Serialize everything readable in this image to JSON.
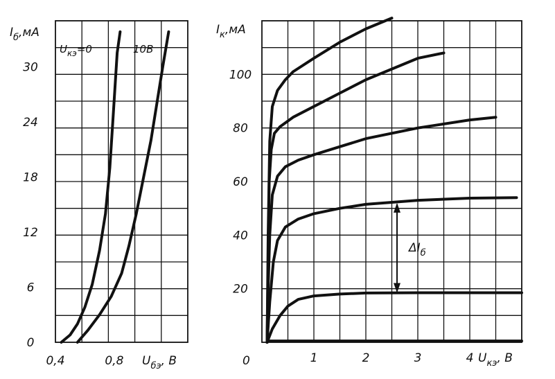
{
  "chart_data": [
    {
      "type": "line",
      "ylabel_main": "I",
      "ylabel_sub": "б",
      "ylabel_unit": ",мА",
      "xlabel_main": "U",
      "xlabel_sub": "бэ",
      "xlabel_unit": ", В",
      "xticks": [
        "0,4",
        "0,8"
      ],
      "xtick_values": [
        0.4,
        0.8
      ],
      "yticks": [
        "0",
        "6",
        "12",
        "18",
        "24",
        "30"
      ],
      "ytick_values": [
        0,
        6,
        12,
        18,
        24,
        30
      ],
      "xlim": [
        0.4,
        1.3
      ],
      "ylim": [
        0,
        35
      ],
      "grid": true,
      "series": [
        {
          "name": "U_кэ=0",
          "name_main": "U",
          "name_sub": "кэ",
          "name_eq": "=0",
          "points": [
            [
              0.44,
              0
            ],
            [
              0.5,
              0.8
            ],
            [
              0.55,
              2
            ],
            [
              0.6,
              3.8
            ],
            [
              0.65,
              6.3
            ],
            [
              0.7,
              10
            ],
            [
              0.74,
              14
            ],
            [
              0.77,
              19
            ],
            [
              0.79,
              24
            ],
            [
              0.81,
              29
            ],
            [
              0.82,
              31.5
            ],
            [
              0.84,
              33.8
            ]
          ]
        },
        {
          "name": "10В",
          "points": [
            [
              0.55,
              0
            ],
            [
              0.62,
              1.3
            ],
            [
              0.7,
              3
            ],
            [
              0.78,
              5
            ],
            [
              0.85,
              7.5
            ],
            [
              0.9,
              10.5
            ],
            [
              0.95,
              14
            ],
            [
              1.0,
              18
            ],
            [
              1.05,
              22
            ],
            [
              1.09,
              26
            ],
            [
              1.13,
              30
            ],
            [
              1.17,
              33.8
            ]
          ]
        }
      ]
    },
    {
      "type": "line",
      "ylabel_main": "I",
      "ylabel_sub": "к",
      "ylabel_unit": ",мА",
      "xlabel_main": "U",
      "xlabel_sub": "кэ",
      "xlabel_unit": ", В",
      "origin_label": "0",
      "xticks": [
        "1",
        "2",
        "3",
        "4"
      ],
      "xtick_values": [
        1,
        2,
        3,
        4
      ],
      "yticks": [
        "20",
        "40",
        "60",
        "80",
        "100"
      ],
      "ytick_values": [
        20,
        40,
        60,
        80,
        100
      ],
      "xlim": [
        0,
        5
      ],
      "ylim": [
        0,
        120
      ],
      "grid": true,
      "annotation_main": "ΔI",
      "annotation_sub": "б",
      "annotation_arrow": {
        "x": 2.6,
        "y_from": 18.5,
        "y_to": 52
      },
      "series": [
        {
          "points": [
            [
              0.1,
              0.5
            ],
            [
              5.0,
              0.5
            ]
          ]
        },
        {
          "points": [
            [
              0.1,
              0
            ],
            [
              0.2,
              5
            ],
            [
              0.35,
              10
            ],
            [
              0.5,
              13.5
            ],
            [
              0.7,
              16
            ],
            [
              1.0,
              17.3
            ],
            [
              1.5,
              18
            ],
            [
              2.0,
              18.4
            ],
            [
              3.0,
              18.5
            ],
            [
              5.0,
              18.5
            ]
          ]
        },
        {
          "points": [
            [
              0.1,
              0
            ],
            [
              0.15,
              15
            ],
            [
              0.22,
              30
            ],
            [
              0.3,
              38
            ],
            [
              0.45,
              43
            ],
            [
              0.7,
              46
            ],
            [
              1.0,
              48
            ],
            [
              1.5,
              50
            ],
            [
              2.0,
              51.5
            ],
            [
              3.0,
              53
            ],
            [
              4.0,
              53.8
            ],
            [
              4.9,
              54
            ]
          ]
        },
        {
          "points": [
            [
              0.1,
              0
            ],
            [
              0.12,
              20
            ],
            [
              0.15,
              40
            ],
            [
              0.2,
              55
            ],
            [
              0.3,
              62
            ],
            [
              0.45,
              65.5
            ],
            [
              0.7,
              68
            ],
            [
              1.0,
              70
            ],
            [
              1.5,
              73
            ],
            [
              2.0,
              76
            ],
            [
              3.0,
              80
            ],
            [
              4.0,
              83
            ],
            [
              4.5,
              84
            ]
          ]
        },
        {
          "points": [
            [
              0.1,
              0
            ],
            [
              0.12,
              30
            ],
            [
              0.14,
              60
            ],
            [
              0.18,
              72
            ],
            [
              0.24,
              78
            ],
            [
              0.35,
              80.5
            ],
            [
              0.6,
              84
            ],
            [
              1.0,
              88
            ],
            [
              1.5,
              93
            ],
            [
              2.0,
              98
            ],
            [
              2.5,
              102
            ],
            [
              3.0,
              106
            ],
            [
              3.5,
              108
            ]
          ]
        },
        {
          "points": [
            [
              0.1,
              0
            ],
            [
              0.12,
              40
            ],
            [
              0.15,
              75
            ],
            [
              0.2,
              88
            ],
            [
              0.3,
              94
            ],
            [
              0.45,
              98
            ],
            [
              0.6,
              101
            ],
            [
              1.0,
              106
            ],
            [
              1.5,
              112
            ],
            [
              2.0,
              117
            ],
            [
              2.5,
              121
            ]
          ]
        }
      ]
    }
  ]
}
